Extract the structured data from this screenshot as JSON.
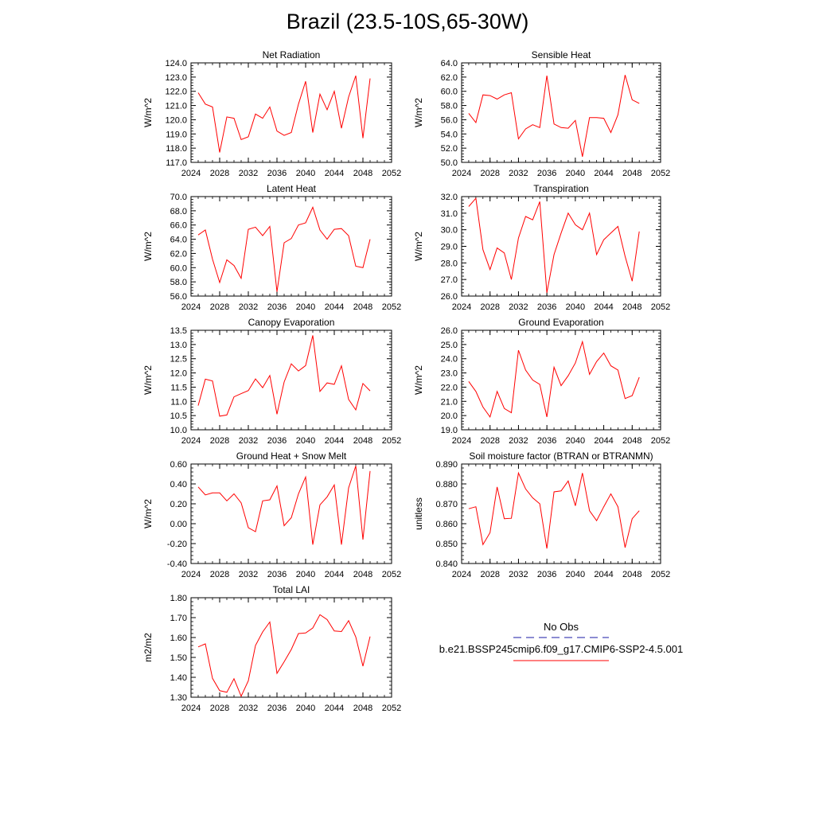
{
  "title": "Brazil (23.5-10S,65-30W)",
  "colors": {
    "model": "#ff0000",
    "obs": "#1a1aa6",
    "axis": "#000000"
  },
  "legend": {
    "obs_label": "No Obs",
    "model_label": "b.e21.BSSP245cmip6.f09_g17.CMIP6-SSP2-4.5.001"
  },
  "chart_data": [
    {
      "type": "line",
      "title": "Net Radiation",
      "ylabel": "W/m^2",
      "xlim": [
        2024,
        2052
      ],
      "ylim": [
        117.0,
        124.0
      ],
      "xticks": [
        2024,
        2028,
        2032,
        2036,
        2040,
        2044,
        2048,
        2052
      ],
      "xtick_labels": [
        "2024",
        "2028",
        "2032",
        "2036",
        "2040",
        "2044",
        "2048",
        "2052"
      ],
      "yticks": [
        117.0,
        118.0,
        119.0,
        120.0,
        121.0,
        122.0,
        123.0,
        124.0
      ],
      "ytick_labels": [
        "117.0",
        "118.0",
        "119.0",
        "120.0",
        "121.0",
        "122.0",
        "123.0",
        "124.0"
      ],
      "x": [
        2025,
        2026,
        2027,
        2028,
        2029,
        2030,
        2031,
        2032,
        2033,
        2034,
        2035,
        2036,
        2037,
        2038,
        2039,
        2040,
        2041,
        2042,
        2043,
        2044,
        2045,
        2046,
        2047,
        2048,
        2049
      ],
      "series": [
        {
          "values": [
            121.9,
            121.1,
            120.9,
            117.7,
            120.2,
            120.1,
            118.6,
            118.8,
            120.4,
            120.1,
            120.9,
            119.2,
            118.9,
            119.1,
            121.1,
            122.7,
            119.1,
            121.8,
            120.7,
            122.0,
            119.4,
            121.6,
            123.1,
            118.7,
            122.9
          ]
        }
      ]
    },
    {
      "type": "line",
      "title": "Sensible Heat",
      "ylabel": "W/m^2",
      "xlim": [
        2024,
        2052
      ],
      "ylim": [
        50.0,
        64.0
      ],
      "xticks": [
        2024,
        2028,
        2032,
        2036,
        2040,
        2044,
        2048,
        2052
      ],
      "xtick_labels": [
        "2024",
        "2028",
        "2032",
        "2036",
        "2040",
        "2044",
        "2048",
        "2052"
      ],
      "yticks": [
        50.0,
        52.0,
        54.0,
        56.0,
        58.0,
        60.0,
        62.0,
        64.0
      ],
      "ytick_labels": [
        "50.0",
        "52.0",
        "54.0",
        "56.0",
        "58.0",
        "60.0",
        "62.0",
        "64.0"
      ],
      "x": [
        2025,
        2026,
        2027,
        2028,
        2029,
        2030,
        2031,
        2032,
        2033,
        2034,
        2035,
        2036,
        2037,
        2038,
        2039,
        2040,
        2041,
        2042,
        2043,
        2044,
        2045,
        2046,
        2047,
        2048,
        2049
      ],
      "series": [
        {
          "values": [
            56.9,
            55.6,
            59.5,
            59.4,
            58.9,
            59.5,
            59.8,
            53.3,
            54.7,
            55.3,
            54.9,
            62.2,
            55.4,
            54.9,
            54.8,
            55.9,
            50.8,
            56.3,
            56.3,
            56.2,
            54.2,
            56.7,
            62.3,
            58.8,
            58.3
          ]
        }
      ]
    },
    {
      "type": "line",
      "title": "Latent Heat",
      "ylabel": "W/m^2",
      "xlim": [
        2024,
        2052
      ],
      "ylim": [
        56.0,
        70.0
      ],
      "xticks": [
        2024,
        2028,
        2032,
        2036,
        2040,
        2044,
        2048,
        2052
      ],
      "xtick_labels": [
        "2024",
        "2028",
        "2032",
        "2036",
        "2040",
        "2044",
        "2048",
        "2052"
      ],
      "yticks": [
        56.0,
        58.0,
        60.0,
        62.0,
        64.0,
        66.0,
        68.0,
        70.0
      ],
      "ytick_labels": [
        "56.0",
        "58.0",
        "60.0",
        "62.0",
        "64.0",
        "66.0",
        "68.0",
        "70.0"
      ],
      "x": [
        2025,
        2026,
        2027,
        2028,
        2029,
        2030,
        2031,
        2032,
        2033,
        2034,
        2035,
        2036,
        2037,
        2038,
        2039,
        2040,
        2041,
        2042,
        2043,
        2044,
        2045,
        2046,
        2047,
        2048,
        2049
      ],
      "series": [
        {
          "values": [
            64.6,
            65.3,
            61.2,
            57.9,
            61.1,
            60.3,
            58.5,
            65.4,
            65.7,
            64.5,
            65.8,
            56.6,
            63.5,
            64.1,
            66.0,
            66.3,
            68.5,
            65.3,
            64.0,
            65.4,
            65.5,
            64.5,
            60.2,
            60.0,
            64.0
          ]
        }
      ]
    },
    {
      "type": "line",
      "title": "Transpiration",
      "ylabel": "W/m^2",
      "xlim": [
        2024,
        2052
      ],
      "ylim": [
        26.0,
        32.0
      ],
      "xticks": [
        2024,
        2028,
        2032,
        2036,
        2040,
        2044,
        2048,
        2052
      ],
      "xtick_labels": [
        "2024",
        "2028",
        "2032",
        "2036",
        "2040",
        "2044",
        "2048",
        "2052"
      ],
      "yticks": [
        26.0,
        27.0,
        28.0,
        29.0,
        30.0,
        31.0,
        32.0
      ],
      "ytick_labels": [
        "26.0",
        "27.0",
        "28.0",
        "29.0",
        "30.0",
        "31.0",
        "32.0"
      ],
      "x": [
        2025,
        2026,
        2027,
        2028,
        2029,
        2030,
        2031,
        2032,
        2033,
        2034,
        2035,
        2036,
        2037,
        2038,
        2039,
        2040,
        2041,
        2042,
        2043,
        2044,
        2045,
        2046,
        2047,
        2048,
        2049
      ],
      "series": [
        {
          "values": [
            31.4,
            31.9,
            28.8,
            27.6,
            28.9,
            28.6,
            27.0,
            29.5,
            30.8,
            30.6,
            31.7,
            26.2,
            28.5,
            29.8,
            31.0,
            30.3,
            30.0,
            31.0,
            28.5,
            29.4,
            29.8,
            30.2,
            28.4,
            26.9,
            29.9
          ]
        }
      ]
    },
    {
      "type": "line",
      "title": "Canopy Evaporation",
      "ylabel": "W/m^2",
      "xlim": [
        2024,
        2052
      ],
      "ylim": [
        10.0,
        13.5
      ],
      "xticks": [
        2024,
        2028,
        2032,
        2036,
        2040,
        2044,
        2048,
        2052
      ],
      "xtick_labels": [
        "2024",
        "2028",
        "2032",
        "2036",
        "2040",
        "2044",
        "2048",
        "2052"
      ],
      "yticks": [
        10.0,
        10.5,
        11.0,
        11.5,
        12.0,
        12.5,
        13.0,
        13.5
      ],
      "ytick_labels": [
        "10.0",
        "10.5",
        "11.0",
        "11.5",
        "12.0",
        "12.5",
        "13.0",
        "13.5"
      ],
      "x": [
        2025,
        2026,
        2027,
        2028,
        2029,
        2030,
        2031,
        2032,
        2033,
        2034,
        2035,
        2036,
        2037,
        2038,
        2039,
        2040,
        2041,
        2042,
        2043,
        2044,
        2045,
        2046,
        2047,
        2048,
        2049
      ],
      "series": [
        {
          "values": [
            10.85,
            11.78,
            11.72,
            10.48,
            10.52,
            11.16,
            11.27,
            11.38,
            11.79,
            11.48,
            11.91,
            10.55,
            11.68,
            12.32,
            12.07,
            12.26,
            13.32,
            11.35,
            11.65,
            11.6,
            12.25,
            11.07,
            10.7,
            11.63,
            11.37
          ]
        }
      ]
    },
    {
      "type": "line",
      "title": "Ground Evaporation",
      "ylabel": "W/m^2",
      "xlim": [
        2024,
        2052
      ],
      "ylim": [
        19.0,
        26.0
      ],
      "xticks": [
        2024,
        2028,
        2032,
        2036,
        2040,
        2044,
        2048,
        2052
      ],
      "xtick_labels": [
        "2024",
        "2028",
        "2032",
        "2036",
        "2040",
        "2044",
        "2048",
        "2052"
      ],
      "yticks": [
        19.0,
        20.0,
        21.0,
        22.0,
        23.0,
        24.0,
        25.0,
        26.0
      ],
      "ytick_labels": [
        "19.0",
        "20.0",
        "21.0",
        "22.0",
        "23.0",
        "24.0",
        "25.0",
        "26.0"
      ],
      "x": [
        2025,
        2026,
        2027,
        2028,
        2029,
        2030,
        2031,
        2032,
        2033,
        2034,
        2035,
        2036,
        2037,
        2038,
        2039,
        2040,
        2041,
        2042,
        2043,
        2044,
        2045,
        2046,
        2047,
        2048,
        2049
      ],
      "series": [
        {
          "values": [
            22.4,
            21.7,
            20.6,
            19.9,
            21.7,
            20.5,
            20.2,
            24.6,
            23.2,
            22.5,
            22.2,
            19.9,
            23.4,
            22.1,
            22.8,
            23.7,
            25.2,
            22.9,
            23.8,
            24.4,
            23.5,
            23.2,
            21.2,
            21.4,
            22.7
          ]
        }
      ]
    },
    {
      "type": "line",
      "title": "Ground Heat + Snow Melt",
      "ylabel": "W/m^2",
      "xlim": [
        2024,
        2052
      ],
      "ylim": [
        -0.4,
        0.6
      ],
      "xticks": [
        2024,
        2028,
        2032,
        2036,
        2040,
        2044,
        2048,
        2052
      ],
      "xtick_labels": [
        "2024",
        "2028",
        "2032",
        "2036",
        "2040",
        "2044",
        "2048",
        "2052"
      ],
      "yticks": [
        -0.4,
        -0.2,
        0.0,
        0.2,
        0.4,
        0.6
      ],
      "ytick_labels": [
        "-0.40",
        "-0.20",
        "0.00",
        "0.20",
        "0.40",
        "0.60"
      ],
      "x": [
        2025,
        2026,
        2027,
        2028,
        2029,
        2030,
        2031,
        2032,
        2033,
        2034,
        2035,
        2036,
        2037,
        2038,
        2039,
        2040,
        2041,
        2042,
        2043,
        2044,
        2045,
        2046,
        2047,
        2048,
        2049
      ],
      "series": [
        {
          "values": [
            0.37,
            0.29,
            0.31,
            0.31,
            0.23,
            0.3,
            0.21,
            -0.04,
            -0.08,
            0.23,
            0.24,
            0.38,
            -0.02,
            0.06,
            0.3,
            0.47,
            -0.21,
            0.19,
            0.27,
            0.39,
            -0.21,
            0.36,
            0.58,
            -0.16,
            0.53
          ]
        }
      ]
    },
    {
      "type": "line",
      "title": "Soil moisture factor (BTRAN or BTRANMN)",
      "ylabel": "unitless",
      "xlim": [
        2024,
        2052
      ],
      "ylim": [
        0.84,
        0.89
      ],
      "xticks": [
        2024,
        2028,
        2032,
        2036,
        2040,
        2044,
        2048,
        2052
      ],
      "xtick_labels": [
        "2024",
        "2028",
        "2032",
        "2036",
        "2040",
        "2044",
        "2048",
        "2052"
      ],
      "yticks": [
        0.84,
        0.85,
        0.86,
        0.87,
        0.88,
        0.89
      ],
      "ytick_labels": [
        "0.840",
        "0.850",
        "0.860",
        "0.870",
        "0.880",
        "0.890"
      ],
      "x": [
        2025,
        2026,
        2027,
        2028,
        2029,
        2030,
        2031,
        2032,
        2033,
        2034,
        2035,
        2036,
        2037,
        2038,
        2039,
        2040,
        2041,
        2042,
        2043,
        2044,
        2045,
        2046,
        2047,
        2048,
        2049
      ],
      "series": [
        {
          "values": [
            0.8675,
            0.8685,
            0.8495,
            0.8555,
            0.8785,
            0.8625,
            0.8627,
            0.8855,
            0.8775,
            0.873,
            0.87,
            0.8475,
            0.876,
            0.8765,
            0.8815,
            0.869,
            0.8855,
            0.8665,
            0.8615,
            0.8685,
            0.875,
            0.8685,
            0.848,
            0.8625,
            0.8665
          ]
        }
      ]
    },
    {
      "type": "line",
      "title": "Total LAI",
      "ylabel": "m2/m2",
      "xlim": [
        2024,
        2052
      ],
      "ylim": [
        1.3,
        1.8
      ],
      "xticks": [
        2024,
        2028,
        2032,
        2036,
        2040,
        2044,
        2048,
        2052
      ],
      "xtick_labels": [
        "2024",
        "2028",
        "2032",
        "2036",
        "2040",
        "2044",
        "2048",
        "2052"
      ],
      "yticks": [
        1.3,
        1.4,
        1.5,
        1.6,
        1.7,
        1.8
      ],
      "ytick_labels": [
        "1.30",
        "1.40",
        "1.50",
        "1.60",
        "1.70",
        "1.80"
      ],
      "x": [
        2025,
        2026,
        2027,
        2028,
        2029,
        2030,
        2031,
        2032,
        2033,
        2034,
        2035,
        2036,
        2037,
        2038,
        2039,
        2040,
        2041,
        2042,
        2043,
        2044,
        2045,
        2046,
        2047,
        2048,
        2049
      ],
      "series": [
        {
          "values": [
            1.553,
            1.568,
            1.395,
            1.333,
            1.325,
            1.393,
            1.305,
            1.383,
            1.56,
            1.628,
            1.678,
            1.42,
            1.478,
            1.54,
            1.62,
            1.623,
            1.648,
            1.715,
            1.69,
            1.633,
            1.63,
            1.685,
            1.603,
            1.456,
            1.605
          ]
        }
      ]
    }
  ]
}
